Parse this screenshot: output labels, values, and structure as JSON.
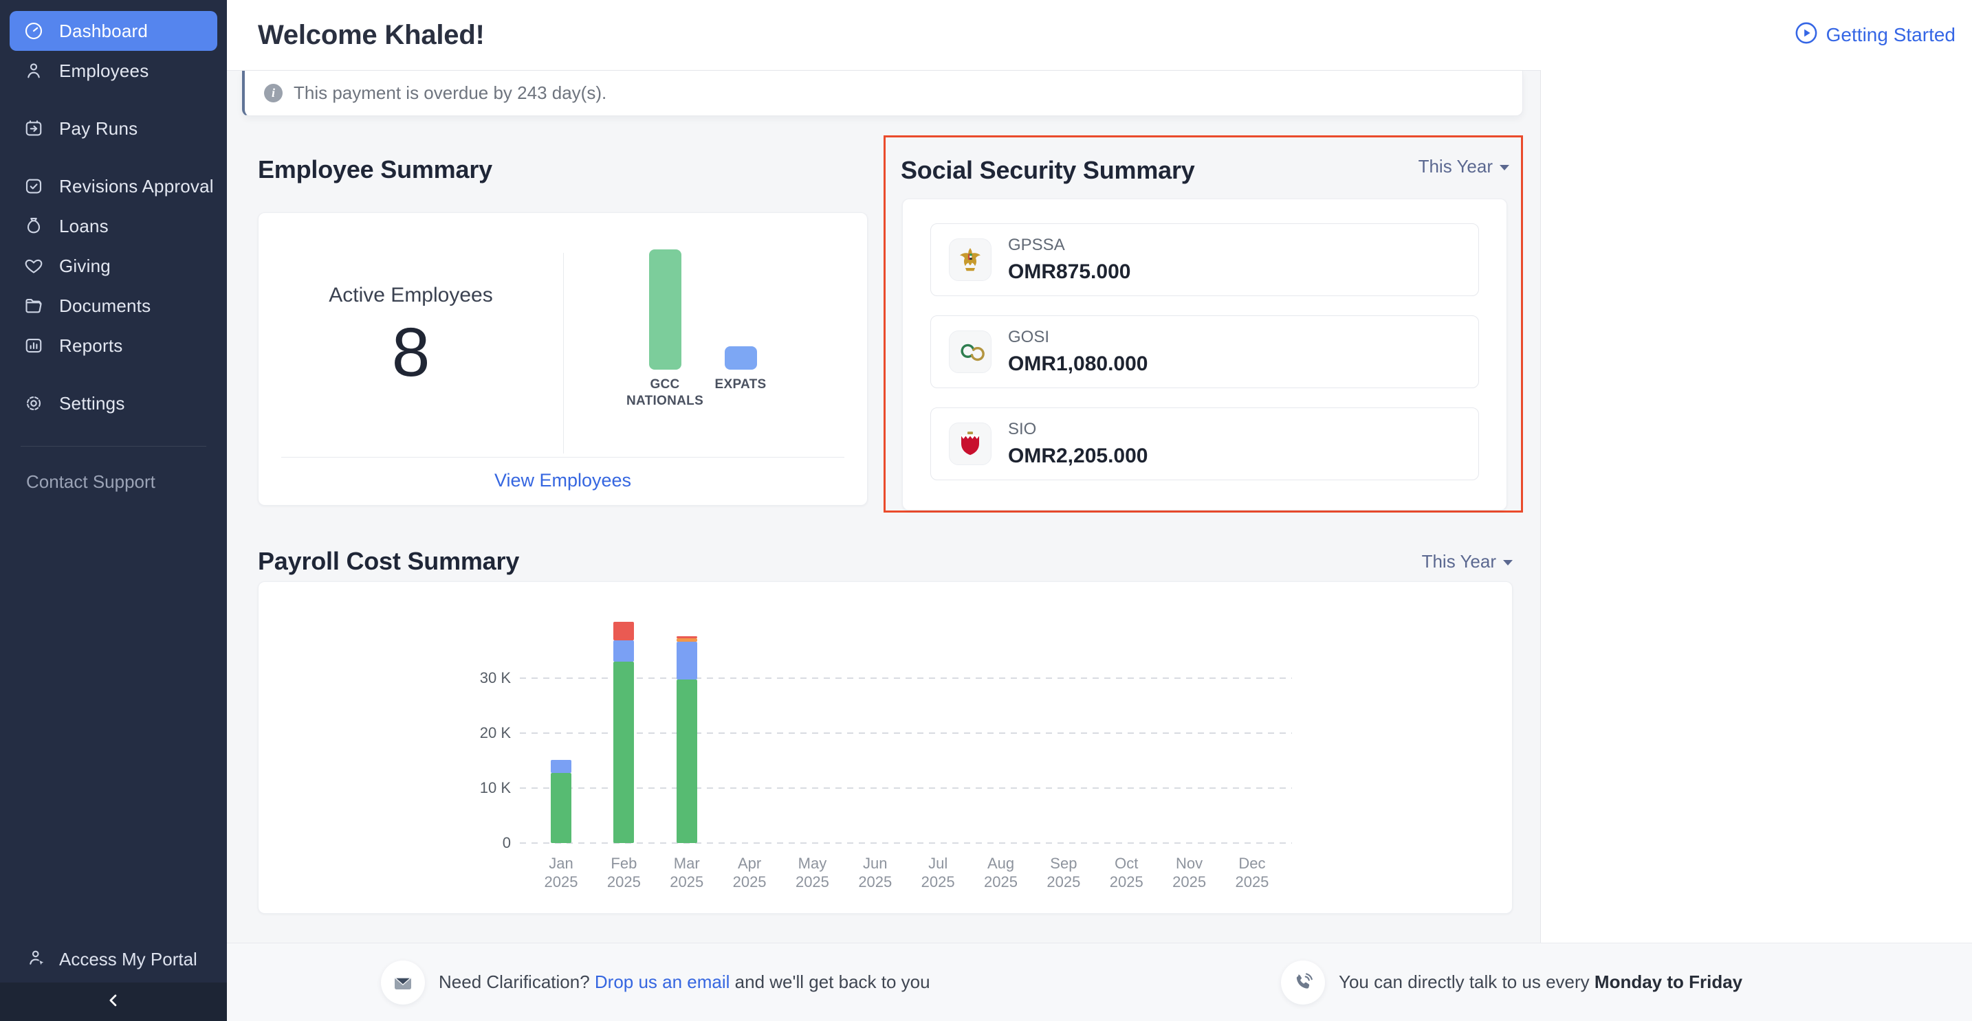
{
  "sidebar": {
    "groups": [
      [
        {
          "label": "Dashboard",
          "icon": "dashboard",
          "active": true
        },
        {
          "label": "Employees",
          "icon": "employees",
          "active": false
        }
      ],
      [
        {
          "label": "Pay Runs",
          "icon": "pay-runs",
          "active": false
        }
      ],
      [
        {
          "label": "Revisions Approval",
          "icon": "revisions-approval",
          "active": false
        },
        {
          "label": "Loans",
          "icon": "loans",
          "active": false
        },
        {
          "label": "Giving",
          "icon": "giving",
          "active": false
        },
        {
          "label": "Documents",
          "icon": "documents",
          "active": false
        },
        {
          "label": "Reports",
          "icon": "reports",
          "active": false
        }
      ],
      [
        {
          "label": "Settings",
          "icon": "settings",
          "active": false
        }
      ]
    ],
    "contact_support": "Contact Support",
    "access_my_portal": "Access My Portal"
  },
  "header": {
    "title": "Welcome Khaled!",
    "getting_started": "Getting Started"
  },
  "alert": {
    "message": "This payment is overdue by 243 day(s)."
  },
  "employee_summary": {
    "title": "Employee Summary",
    "active_employees_label": "Active Employees",
    "active_employees_count": "8",
    "view_employees_link": "View Employees",
    "chart_data": {
      "type": "bar",
      "categories": [
        "GCC NATIONALS",
        "EXPATS"
      ],
      "values": [
        7,
        1
      ],
      "colors": [
        "#7ccd9b",
        "#7da7f4"
      ],
      "title": "Active employees by nationality group"
    }
  },
  "social_security_summary": {
    "title": "Social Security Summary",
    "period": "This Year",
    "rows": [
      {
        "name": "GPSSA",
        "amount": "OMR875.000",
        "icon": "gpssa-emblem"
      },
      {
        "name": "GOSI",
        "amount": "OMR1,080.000",
        "icon": "gosi-logo"
      },
      {
        "name": "SIO",
        "amount": "OMR2,205.000",
        "icon": "sio-emblem"
      }
    ]
  },
  "payroll_cost_summary": {
    "title": "Payroll Cost Summary",
    "period": "This Year",
    "chart_data": {
      "type": "bar",
      "stacked": true,
      "categories": [
        "Jan 2025",
        "Feb 2025",
        "Mar 2025",
        "Apr 2025",
        "May 2025",
        "Jun 2025",
        "Jul 2025",
        "Aug 2025",
        "Sep 2025",
        "Oct 2025",
        "Nov 2025",
        "Dec 2025"
      ],
      "series": [
        {
          "name": "segment-green",
          "color": "#57bb72",
          "values": [
            12800,
            33000,
            29700,
            0,
            0,
            0,
            0,
            0,
            0,
            0,
            0,
            0
          ]
        },
        {
          "name": "segment-blue",
          "color": "#7aa0f4",
          "values": [
            2300,
            3900,
            6900,
            0,
            0,
            0,
            0,
            0,
            0,
            0,
            0,
            0
          ]
        },
        {
          "name": "segment-orange",
          "color": "#f2974b",
          "values": [
            0,
            0,
            600,
            0,
            0,
            0,
            0,
            0,
            0,
            0,
            0,
            0
          ]
        },
        {
          "name": "segment-red",
          "color": "#ea5a52",
          "values": [
            0,
            3300,
            400,
            0,
            0,
            0,
            0,
            0,
            0,
            0,
            0,
            0
          ]
        }
      ],
      "y_ticks": [
        {
          "label": "0",
          "value": 0
        },
        {
          "label": "10 K",
          "value": 10000
        },
        {
          "label": "20 K",
          "value": 20000
        },
        {
          "label": "30 K",
          "value": 30000
        }
      ],
      "ylim": [
        0,
        45000
      ],
      "grid": "dashed-horizontal",
      "legend": "none"
    }
  },
  "footer": {
    "clarification_prefix": "Need Clarification? ",
    "clarification_link": "Drop us an email",
    "clarification_suffix": " and we'll get back to you",
    "phone_prefix": "You can directly talk to us every ",
    "phone_emphasis": "Monday to Friday"
  },
  "colors": {
    "sidebar_bg": "#242d43",
    "sidebar_active": "#5585ee",
    "highlight_border": "#ea4b2c",
    "link_blue": "#3566e0",
    "page_bg": "#f5f6f8"
  }
}
